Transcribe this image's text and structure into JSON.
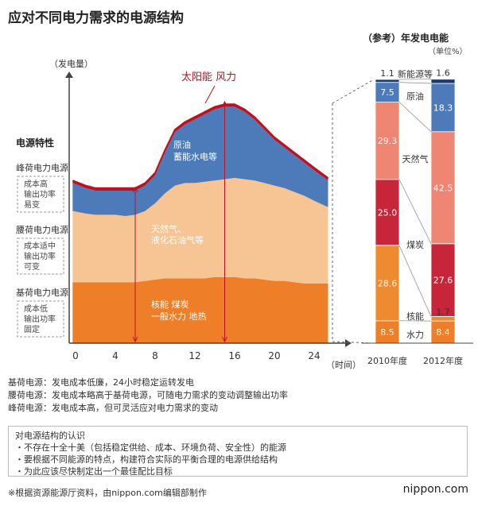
{
  "title": "应对不同电力需求的电源结构",
  "chart_data": [
    {
      "type": "area",
      "ylabel": "（发电量）",
      "xlabel": "（时间）",
      "x_ticks": [
        0,
        4,
        8,
        12,
        16,
        20,
        24
      ],
      "xlim": [
        0,
        24
      ],
      "ylim": [
        0,
        100
      ],
      "hours": [
        -0.3,
        1,
        2,
        3,
        4,
        5,
        6,
        7,
        8,
        9,
        10,
        11,
        12,
        13,
        14,
        15,
        16,
        17,
        18,
        19,
        20,
        21,
        22,
        23,
        24,
        25.4
      ],
      "series": [
        {
          "name": "核能 煤炭 一般水力 地热",
          "color": "#ee7f28",
          "values": [
            24,
            24,
            24,
            24,
            24,
            24,
            24,
            24.5,
            25,
            25.5,
            25.5,
            25.5,
            25.5,
            25.5,
            26,
            26,
            26,
            25.5,
            25.5,
            25,
            24.5,
            24.5,
            24,
            23.5,
            23.5,
            23.5
          ]
        },
        {
          "name": "天然气、液化石油气等",
          "color": "#f6c593",
          "values": [
            52,
            51,
            50.5,
            50.5,
            50.5,
            50,
            50.5,
            52,
            55,
            59,
            62,
            63,
            63,
            63.5,
            64,
            64.5,
            65,
            64.5,
            64,
            63,
            62,
            61,
            59.5,
            58,
            56,
            53.5
          ]
        },
        {
          "name": "原油 蓄能水电等",
          "color": "#4d7ab8",
          "values": [
            63,
            61,
            60,
            60,
            60,
            60,
            60,
            62,
            66,
            75,
            83,
            86,
            88,
            90,
            92,
            93,
            93,
            91,
            88,
            84,
            80,
            77,
            74,
            71,
            68,
            64
          ]
        },
        {
          "name": "太阳能 风力",
          "color": "#c0111f",
          "values": [
            64,
            62,
            61,
            61,
            61,
            61,
            61,
            63,
            67,
            76,
            84,
            87,
            89,
            91,
            93,
            94,
            94,
            92,
            89,
            85,
            81,
            78,
            75,
            72,
            69,
            65
          ]
        }
      ],
      "annotations": [
        "电源特性",
        "峰荷电力电源",
        "成本高",
        "输出功率",
        "易变",
        "腰荷电力电源",
        "成本适中",
        "输出功率",
        "可变",
        "基荷电力电源",
        "成本低",
        "输出功率",
        "固定"
      ]
    },
    {
      "type": "bar",
      "title": "（参考）年发电电能",
      "unit": "（单位%）",
      "categories": [
        "2010年度",
        "2012年度"
      ],
      "series": [
        {
          "name": "水力",
          "color": "#ee7f28",
          "values": [
            8.5,
            8.4
          ]
        },
        {
          "name": "核能",
          "color": "#ee7f28",
          "values": [
            28.6,
            1.7
          ]
        },
        {
          "name": "煤炭",
          "color": "#c7253a",
          "values": [
            25.0,
            27.6
          ]
        },
        {
          "name": "天然气",
          "color": "#ee8673",
          "values": [
            29.3,
            42.5
          ]
        },
        {
          "name": "原油",
          "color": "#4d7ab8",
          "values": [
            7.5,
            18.3
          ]
        },
        {
          "name": "新能源等",
          "color": "#1c3d6b",
          "values": [
            1.1,
            1.6
          ]
        }
      ]
    }
  ],
  "labels": {
    "top_area": "太阳能 风力",
    "blue_1": "原油",
    "blue_2": "蓄能水电等",
    "light_1": "天然气、",
    "light_2": "液化石油气等",
    "orange_1": "核能  煤炭",
    "orange_2": "一般水力  地热",
    "power_char": "电源特性",
    "peak_title": "峰荷电力电源",
    "peak_1": "成本高",
    "peak_2": "输出功率",
    "peak_3": "易变",
    "mid_title": "腰荷电力电源",
    "mid_1": "成本适中",
    "mid_2": "输出功率",
    "mid_3": "可变",
    "base_title": "基荷电力电源",
    "base_1": "成本低",
    "base_2": "输出功率",
    "base_3": "固定"
  },
  "notes": [
    "基荷电源：发电成本低廉，24小时稳定运转发电",
    "腰荷电源：发电成本略高于基荷电源，可随电力需求的变动调整输出功率",
    "峰荷电源：发电成本高，但可灵活应对电力需求的变动"
  ],
  "box_lines": [
    "对电源结构的认识",
    "・不存在十全十美（包括稳定供给、成本、环境负荷、安全性）的能源",
    "・要根据不同能源的特点，构建符合实际的平衡合理的电源供给结构",
    "・为此应该尽快制定出一个最佳配比目标"
  ],
  "footer": "※根据资源能源厅资料，由nippon.com编辑部制作",
  "brand": "nippon.com",
  "colors": {
    "base": "#ee7f28",
    "mid": "#f6c593",
    "peak": "#4d7ab8",
    "renewable": "#c0111f",
    "coal_bar": "#c7253a",
    "gas_bar": "#ee8673",
    "new_energy": "#1c3d6b"
  }
}
